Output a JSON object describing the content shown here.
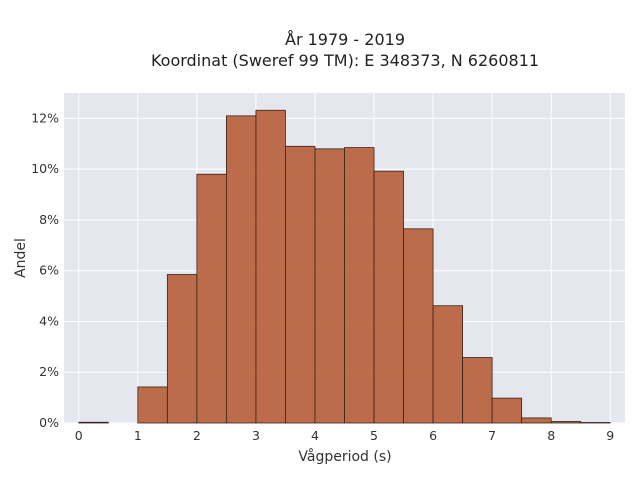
{
  "chart_data": {
    "type": "bar",
    "title_line1": "År 1979 - 2019",
    "title_line2": "Koordinat (Sweref 99 TM): E 348373, N 6260811",
    "xlabel": "Vågperiod (s)",
    "ylabel": "Andel",
    "xlim": [
      -0.25,
      9.25
    ],
    "ylim": [
      0,
      0.13
    ],
    "x_ticks": [
      0,
      1,
      2,
      3,
      4,
      5,
      6,
      7,
      8,
      9
    ],
    "y_ticks": [
      0,
      0.02,
      0.04,
      0.06,
      0.08,
      0.1,
      0.12
    ],
    "y_tick_labels": [
      "0%",
      "2%",
      "4%",
      "6%",
      "8%",
      "10%",
      "12%"
    ],
    "bin_width": 0.5,
    "bins": [
      {
        "start": 0.0,
        "value": 0.0003
      },
      {
        "start": 0.5,
        "value": 0.0
      },
      {
        "start": 1.0,
        "value": 0.0142
      },
      {
        "start": 1.5,
        "value": 0.0585
      },
      {
        "start": 2.0,
        "value": 0.098
      },
      {
        "start": 2.5,
        "value": 0.121
      },
      {
        "start": 3.0,
        "value": 0.1232
      },
      {
        "start": 3.5,
        "value": 0.109
      },
      {
        "start": 4.0,
        "value": 0.108
      },
      {
        "start": 4.5,
        "value": 0.1085
      },
      {
        "start": 5.0,
        "value": 0.0992
      },
      {
        "start": 5.5,
        "value": 0.0765
      },
      {
        "start": 6.0,
        "value": 0.0462
      },
      {
        "start": 6.5,
        "value": 0.0258
      },
      {
        "start": 7.0,
        "value": 0.0098
      },
      {
        "start": 7.5,
        "value": 0.002
      },
      {
        "start": 8.0,
        "value": 0.0006
      },
      {
        "start": 8.5,
        "value": 0.0002
      }
    ],
    "bar_color": "#b5562d",
    "bar_edge_color": "#3a2418",
    "plot_bg": "#e5e7ef",
    "grid": true
  }
}
